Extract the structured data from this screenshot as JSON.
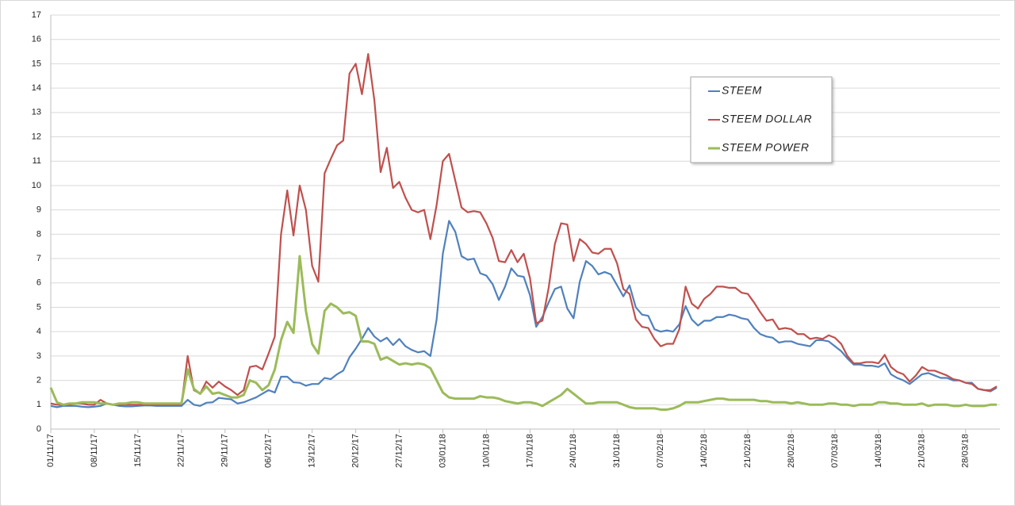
{
  "chart_data": {
    "type": "line",
    "categories": [
      "01/11/17",
      null,
      null,
      null,
      null,
      null,
      null,
      "08/11/17",
      null,
      null,
      null,
      null,
      null,
      null,
      "15/11/17",
      null,
      null,
      null,
      null,
      null,
      null,
      "22/11/17",
      null,
      null,
      null,
      null,
      null,
      null,
      "29/11/17",
      null,
      null,
      null,
      null,
      null,
      null,
      "06/12/17",
      null,
      null,
      null,
      null,
      null,
      null,
      "13/12/17",
      null,
      null,
      null,
      null,
      null,
      null,
      "20/12/17",
      null,
      null,
      null,
      null,
      null,
      null,
      "27/12/17",
      null,
      null,
      null,
      null,
      null,
      null,
      "03/01/18",
      null,
      null,
      null,
      null,
      null,
      null,
      "10/01/18",
      null,
      null,
      null,
      null,
      null,
      null,
      "17/01/18",
      null,
      null,
      null,
      null,
      null,
      null,
      "24/01/18",
      null,
      null,
      null,
      null,
      null,
      null,
      "31/01/18",
      null,
      null,
      null,
      null,
      null,
      null,
      "07/02/18",
      null,
      null,
      null,
      null,
      null,
      null,
      "14/02/18",
      null,
      null,
      null,
      null,
      null,
      null,
      "21/02/18",
      null,
      null,
      null,
      null,
      null,
      null,
      "28/02/18",
      null,
      null,
      null,
      null,
      null,
      null,
      "07/03/18",
      null,
      null,
      null,
      null,
      null,
      null,
      "14/03/18",
      null,
      null,
      null,
      null,
      null,
      null,
      "21/03/18",
      null,
      null,
      null,
      null,
      null,
      null,
      "28/03/18",
      null,
      null,
      null,
      null,
      null
    ],
    "series": [
      {
        "name": "STEEM",
        "color": "#4f81bd",
        "values": [
          0.95,
          0.9,
          0.95,
          0.95,
          0.95,
          0.92,
          0.9,
          0.92,
          0.95,
          1.05,
          1.0,
          0.95,
          0.93,
          0.93,
          0.95,
          0.97,
          0.97,
          0.95,
          0.95,
          0.95,
          0.95,
          0.95,
          1.2,
          1.0,
          0.95,
          1.08,
          1.1,
          1.28,
          1.25,
          1.22,
          1.05,
          1.1,
          1.2,
          1.3,
          1.45,
          1.6,
          1.5,
          2.15,
          2.15,
          1.92,
          1.9,
          1.78,
          1.85,
          1.85,
          2.1,
          2.05,
          2.25,
          2.4,
          2.95,
          3.3,
          3.7,
          4.15,
          3.8,
          3.6,
          3.75,
          3.45,
          3.7,
          3.4,
          3.25,
          3.15,
          3.2,
          3.0,
          4.5,
          7.2,
          8.55,
          8.1,
          7.1,
          6.95,
          7.0,
          6.4,
          6.3,
          5.95,
          5.3,
          5.85,
          6.6,
          6.3,
          6.25,
          5.5,
          4.2,
          4.6,
          5.2,
          5.75,
          5.85,
          4.95,
          4.55,
          6.05,
          6.9,
          6.7,
          6.35,
          6.45,
          6.35,
          5.9,
          5.45,
          5.9,
          5.0,
          4.7,
          4.65,
          4.1,
          4.0,
          4.05,
          4.0,
          4.3,
          5.05,
          4.5,
          4.25,
          4.45,
          4.45,
          4.6,
          4.6,
          4.7,
          4.65,
          4.55,
          4.5,
          4.15,
          3.9,
          3.8,
          3.75,
          3.55,
          3.6,
          3.6,
          3.5,
          3.45,
          3.4,
          3.65,
          3.65,
          3.6,
          3.4,
          3.2,
          2.9,
          2.65,
          2.65,
          2.6,
          2.6,
          2.55,
          2.7,
          2.25,
          2.1,
          2.0,
          1.85,
          2.05,
          2.25,
          2.3,
          2.2,
          2.1,
          2.1,
          2.0,
          2.0,
          1.9,
          1.9,
          1.65,
          1.6,
          1.55,
          1.7
        ]
      },
      {
        "name": "STEEM DOLLAR",
        "color": "#c0504d",
        "values": [
          1.05,
          1.0,
          1.0,
          1.0,
          1.05,
          1.05,
          1.0,
          1.0,
          1.2,
          1.05,
          1.0,
          1.0,
          1.0,
          1.0,
          1.0,
          1.0,
          1.0,
          1.0,
          1.0,
          1.0,
          1.0,
          1.0,
          3.0,
          1.6,
          1.45,
          1.95,
          1.7,
          1.95,
          1.75,
          1.6,
          1.4,
          1.6,
          2.55,
          2.6,
          2.45,
          3.1,
          3.8,
          8.0,
          9.8,
          7.95,
          10.0,
          9.0,
          6.7,
          6.05,
          10.5,
          11.1,
          11.65,
          11.85,
          14.6,
          15.0,
          13.75,
          15.4,
          13.5,
          10.55,
          11.55,
          9.9,
          10.15,
          9.5,
          9.0,
          8.9,
          9.0,
          7.8,
          9.2,
          11.0,
          11.3,
          10.2,
          9.1,
          8.9,
          8.95,
          8.9,
          8.45,
          7.85,
          6.9,
          6.85,
          7.35,
          6.85,
          7.2,
          6.2,
          4.35,
          4.45,
          5.8,
          7.6,
          8.45,
          8.4,
          6.9,
          7.8,
          7.6,
          7.25,
          7.2,
          7.4,
          7.4,
          6.8,
          5.75,
          5.55,
          4.5,
          4.2,
          4.15,
          3.7,
          3.4,
          3.5,
          3.5,
          4.1,
          5.85,
          5.15,
          4.95,
          5.35,
          5.55,
          5.85,
          5.85,
          5.8,
          5.8,
          5.6,
          5.55,
          5.2,
          4.8,
          4.45,
          4.5,
          4.1,
          4.15,
          4.1,
          3.9,
          3.9,
          3.7,
          3.75,
          3.7,
          3.85,
          3.75,
          3.5,
          3.0,
          2.7,
          2.7,
          2.75,
          2.75,
          2.7,
          3.05,
          2.55,
          2.35,
          2.25,
          1.95,
          2.2,
          2.55,
          2.4,
          2.4,
          2.3,
          2.2,
          2.05,
          2.0,
          1.9,
          1.85,
          1.65,
          1.6,
          1.6,
          1.75
        ]
      },
      {
        "name": "STEEM POWER",
        "color": "#9bbb59",
        "values": [
          1.7,
          1.1,
          1.0,
          1.05,
          1.05,
          1.1,
          1.1,
          1.1,
          1.05,
          1.05,
          1.0,
          1.05,
          1.05,
          1.1,
          1.1,
          1.05,
          1.05,
          1.05,
          1.05,
          1.05,
          1.05,
          1.05,
          2.45,
          1.65,
          1.45,
          1.75,
          1.45,
          1.5,
          1.4,
          1.3,
          1.3,
          1.4,
          2.0,
          1.9,
          1.6,
          1.8,
          2.45,
          3.65,
          4.4,
          3.95,
          7.1,
          4.85,
          3.5,
          3.1,
          4.85,
          5.15,
          5.0,
          4.75,
          4.8,
          4.65,
          3.6,
          3.6,
          3.5,
          2.85,
          2.95,
          2.8,
          2.65,
          2.7,
          2.65,
          2.7,
          2.65,
          2.5,
          2.0,
          1.5,
          1.3,
          1.25,
          1.25,
          1.25,
          1.25,
          1.35,
          1.3,
          1.3,
          1.25,
          1.15,
          1.1,
          1.05,
          1.1,
          1.1,
          1.05,
          0.95,
          1.1,
          1.25,
          1.4,
          1.65,
          1.45,
          1.25,
          1.05,
          1.05,
          1.1,
          1.1,
          1.1,
          1.1,
          1.0,
          0.9,
          0.85,
          0.85,
          0.85,
          0.85,
          0.8,
          0.8,
          0.85,
          0.95,
          1.1,
          1.1,
          1.1,
          1.15,
          1.2,
          1.25,
          1.25,
          1.2,
          1.2,
          1.2,
          1.2,
          1.2,
          1.15,
          1.15,
          1.1,
          1.1,
          1.1,
          1.05,
          1.1,
          1.05,
          1.0,
          1.0,
          1.0,
          1.05,
          1.05,
          1.0,
          1.0,
          0.95,
          1.0,
          1.0,
          1.0,
          1.1,
          1.1,
          1.05,
          1.05,
          1.0,
          1.0,
          1.0,
          1.05,
          0.95,
          1.0,
          1.0,
          1.0,
          0.95,
          0.95,
          1.0,
          0.95,
          0.95,
          0.95,
          1.0,
          1.0
        ]
      }
    ],
    "ylim": [
      0,
      17
    ],
    "yticks": [
      0,
      1,
      2,
      3,
      4,
      5,
      6,
      7,
      8,
      9,
      10,
      11,
      12,
      13,
      14,
      15,
      16,
      17
    ],
    "grid": true,
    "legend": "upper right"
  }
}
